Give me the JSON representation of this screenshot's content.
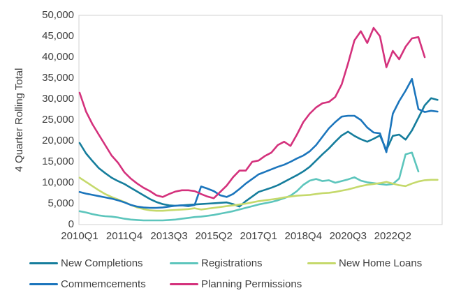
{
  "chart_data": {
    "type": "line",
    "title": "",
    "ylabel": "4 Quarter Rolling Total",
    "ylim": [
      0,
      50000
    ],
    "grid": false,
    "legend_position": "bottom",
    "y_tick_labels": [
      "0",
      "5,000",
      "10,000",
      "15,000",
      "20,000",
      "25,000",
      "30,000",
      "35,000",
      "40,000",
      "45,000",
      "50,000"
    ],
    "x_tick_labels": [
      "2010Q1",
      "2011Q4",
      "2013Q3",
      "2015Q2",
      "2017Q1",
      "2018Q4",
      "2020Q3",
      "2022Q2"
    ],
    "x_tick_indices": [
      0,
      7,
      14,
      21,
      28,
      35,
      42,
      49
    ],
    "categories": [
      "2010Q1",
      "2010Q2",
      "2010Q3",
      "2010Q4",
      "2011Q1",
      "2011Q2",
      "2011Q3",
      "2011Q4",
      "2012Q1",
      "2012Q2",
      "2012Q3",
      "2012Q4",
      "2013Q1",
      "2013Q2",
      "2013Q3",
      "2013Q4",
      "2014Q1",
      "2014Q2",
      "2014Q3",
      "2014Q4",
      "2015Q1",
      "2015Q2",
      "2015Q3",
      "2015Q4",
      "2016Q1",
      "2016Q2",
      "2016Q3",
      "2016Q4",
      "2017Q1",
      "2017Q2",
      "2017Q3",
      "2017Q4",
      "2018Q1",
      "2018Q2",
      "2018Q3",
      "2018Q4",
      "2019Q1",
      "2019Q2",
      "2019Q3",
      "2019Q4",
      "2020Q1",
      "2020Q2",
      "2020Q3",
      "2020Q4",
      "2021Q1",
      "2021Q2",
      "2021Q3",
      "2021Q4",
      "2022Q1",
      "2022Q2",
      "2022Q3",
      "2022Q4",
      "2023Q1",
      "2023Q2",
      "2023Q3",
      "2023Q4",
      "2024Q1"
    ],
    "series": [
      {
        "name": "New Completions",
        "color": "#157d9c",
        "values": [
          19500,
          17000,
          15200,
          13500,
          12300,
          11200,
          10400,
          9700,
          8800,
          7900,
          7000,
          6100,
          5400,
          4900,
          4600,
          4500,
          4600,
          4700,
          4800,
          4900,
          5000,
          5100,
          5200,
          5300,
          4900,
          4300,
          5600,
          6700,
          7800,
          8300,
          8800,
          9400,
          10200,
          11000,
          11800,
          12700,
          13800,
          15300,
          16800,
          18200,
          19800,
          21300,
          22200,
          21200,
          20400,
          19800,
          20500,
          21300,
          17800,
          21200,
          21500,
          20300,
          22500,
          25500,
          28500,
          30200,
          29800
        ]
      },
      {
        "name": "Registrations",
        "color": "#5cc5bc",
        "values": [
          3200,
          2900,
          2500,
          2200,
          2000,
          1900,
          1700,
          1400,
          1200,
          1100,
          1000,
          1000,
          1000,
          1000,
          1100,
          1200,
          1400,
          1600,
          1800,
          1900,
          2100,
          2300,
          2600,
          2900,
          3200,
          3600,
          4000,
          4400,
          4800,
          5100,
          5400,
          5800,
          6300,
          6900,
          8000,
          9500,
          10500,
          10900,
          10400,
          10600,
          10000,
          10400,
          10800,
          11300,
          10500,
          10100,
          9900,
          9700,
          9500,
          9700,
          11000,
          16800,
          17200,
          12700,
          null,
          null,
          null
        ]
      },
      {
        "name": "New Home Loans",
        "color": "#c5d96b",
        "values": [
          11200,
          10200,
          9200,
          8200,
          7300,
          6600,
          6000,
          5400,
          4700,
          4100,
          3700,
          3400,
          3300,
          3300,
          3400,
          3500,
          3600,
          3700,
          3900,
          3600,
          3800,
          4000,
          4200,
          4400,
          4600,
          4800,
          5000,
          5300,
          5600,
          5800,
          6000,
          6200,
          6500,
          6700,
          6900,
          7000,
          7100,
          7300,
          7500,
          7600,
          7800,
          8100,
          8400,
          8800,
          9200,
          9500,
          9700,
          9900,
          10200,
          9800,
          9400,
          9200,
          9800,
          10300,
          10600,
          10700,
          10700
        ]
      },
      {
        "name": "Commemcements",
        "color": "#1b75bc",
        "values": [
          7800,
          7400,
          7100,
          6800,
          6500,
          6200,
          5800,
          5300,
          4700,
          4300,
          4100,
          4000,
          4000,
          4100,
          4300,
          4500,
          4600,
          4400,
          4700,
          9100,
          8600,
          8000,
          7000,
          6600,
          7300,
          8500,
          9800,
          10900,
          12000,
          12600,
          13200,
          13800,
          14300,
          15000,
          15800,
          16500,
          17500,
          19000,
          21000,
          23000,
          24500,
          25800,
          26000,
          26000,
          25000,
          23200,
          22000,
          21800,
          17300,
          26500,
          29500,
          32000,
          34800,
          27600,
          26900,
          27200,
          27000
        ]
      },
      {
        "name": "Planning Permissions",
        "color": "#d4317c",
        "values": [
          31500,
          27000,
          24000,
          21500,
          19000,
          16500,
          14800,
          12500,
          11000,
          9800,
          8800,
          8000,
          7000,
          6600,
          7300,
          7900,
          8200,
          8200,
          8000,
          7300,
          6700,
          6300,
          7800,
          9300,
          11300,
          12900,
          12900,
          15000,
          15300,
          16400,
          17200,
          19000,
          19800,
          18800,
          21500,
          24500,
          26500,
          28000,
          29000,
          29300,
          30500,
          33500,
          38500,
          44000,
          46200,
          43400,
          47000,
          45000,
          37600,
          41500,
          39500,
          42500,
          44500,
          44800,
          40000,
          null,
          null
        ]
      }
    ],
    "legend_rows": [
      [
        "New Completions",
        "Registrations",
        "New Home Loans"
      ],
      [
        "Commemcements",
        "Planning Permissions"
      ]
    ]
  }
}
